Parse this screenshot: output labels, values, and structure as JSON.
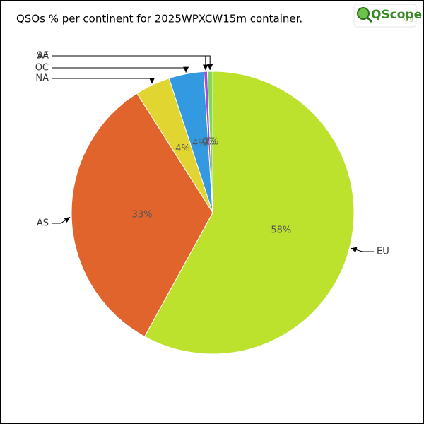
{
  "chart_data": {
    "type": "pie",
    "title": "QSOs % per continent for 2025WPXCW15m container.",
    "logo": {
      "main": "QScope",
      "suffix": ".org"
    },
    "categories": [
      "EU",
      "AS",
      "NA",
      "OC",
      "SA",
      "AF"
    ],
    "values": [
      58,
      33,
      4,
      4,
      0.4,
      0.6
    ],
    "value_labels": [
      "58%",
      "33%",
      "4%",
      "4%",
      "0%",
      "1%"
    ],
    "colors": [
      "#bde22e",
      "#e0642c",
      "#e0d531",
      "#3399e0",
      "#a64bd6",
      "#7ed957"
    ]
  }
}
